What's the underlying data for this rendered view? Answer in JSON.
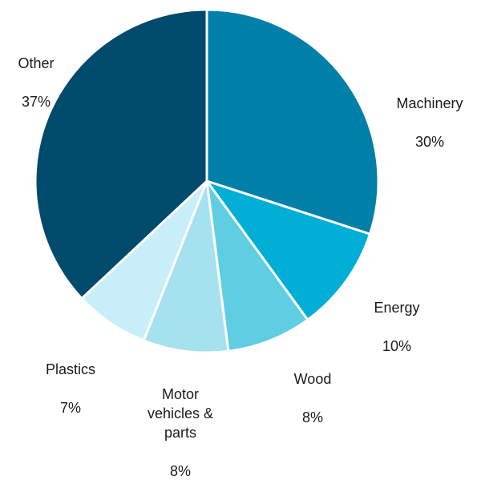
{
  "chart_data": {
    "type": "pie",
    "title": "",
    "slices": [
      {
        "label": "Machinery",
        "value": 30,
        "value_label": "30%",
        "color": "#007FA8"
      },
      {
        "label": "Energy",
        "value": 10,
        "value_label": "10%",
        "color": "#00AED6"
      },
      {
        "label": "Wood",
        "value": 8,
        "value_label": "8%",
        "color": "#5FCDE2"
      },
      {
        "label": "Motor\nvehicles &\nparts",
        "value": 8,
        "value_label": "8%",
        "color": "#A5E1EE"
      },
      {
        "label": "Plastics",
        "value": 7,
        "value_label": "7%",
        "color": "#C8EEF9"
      },
      {
        "label": "Other",
        "value": 37,
        "value_label": "37%",
        "color": "#004A6C"
      }
    ],
    "start_angle_deg": 0,
    "direction": "clockwise",
    "slice_border_color": "#FFFFFF",
    "legend": "none"
  }
}
